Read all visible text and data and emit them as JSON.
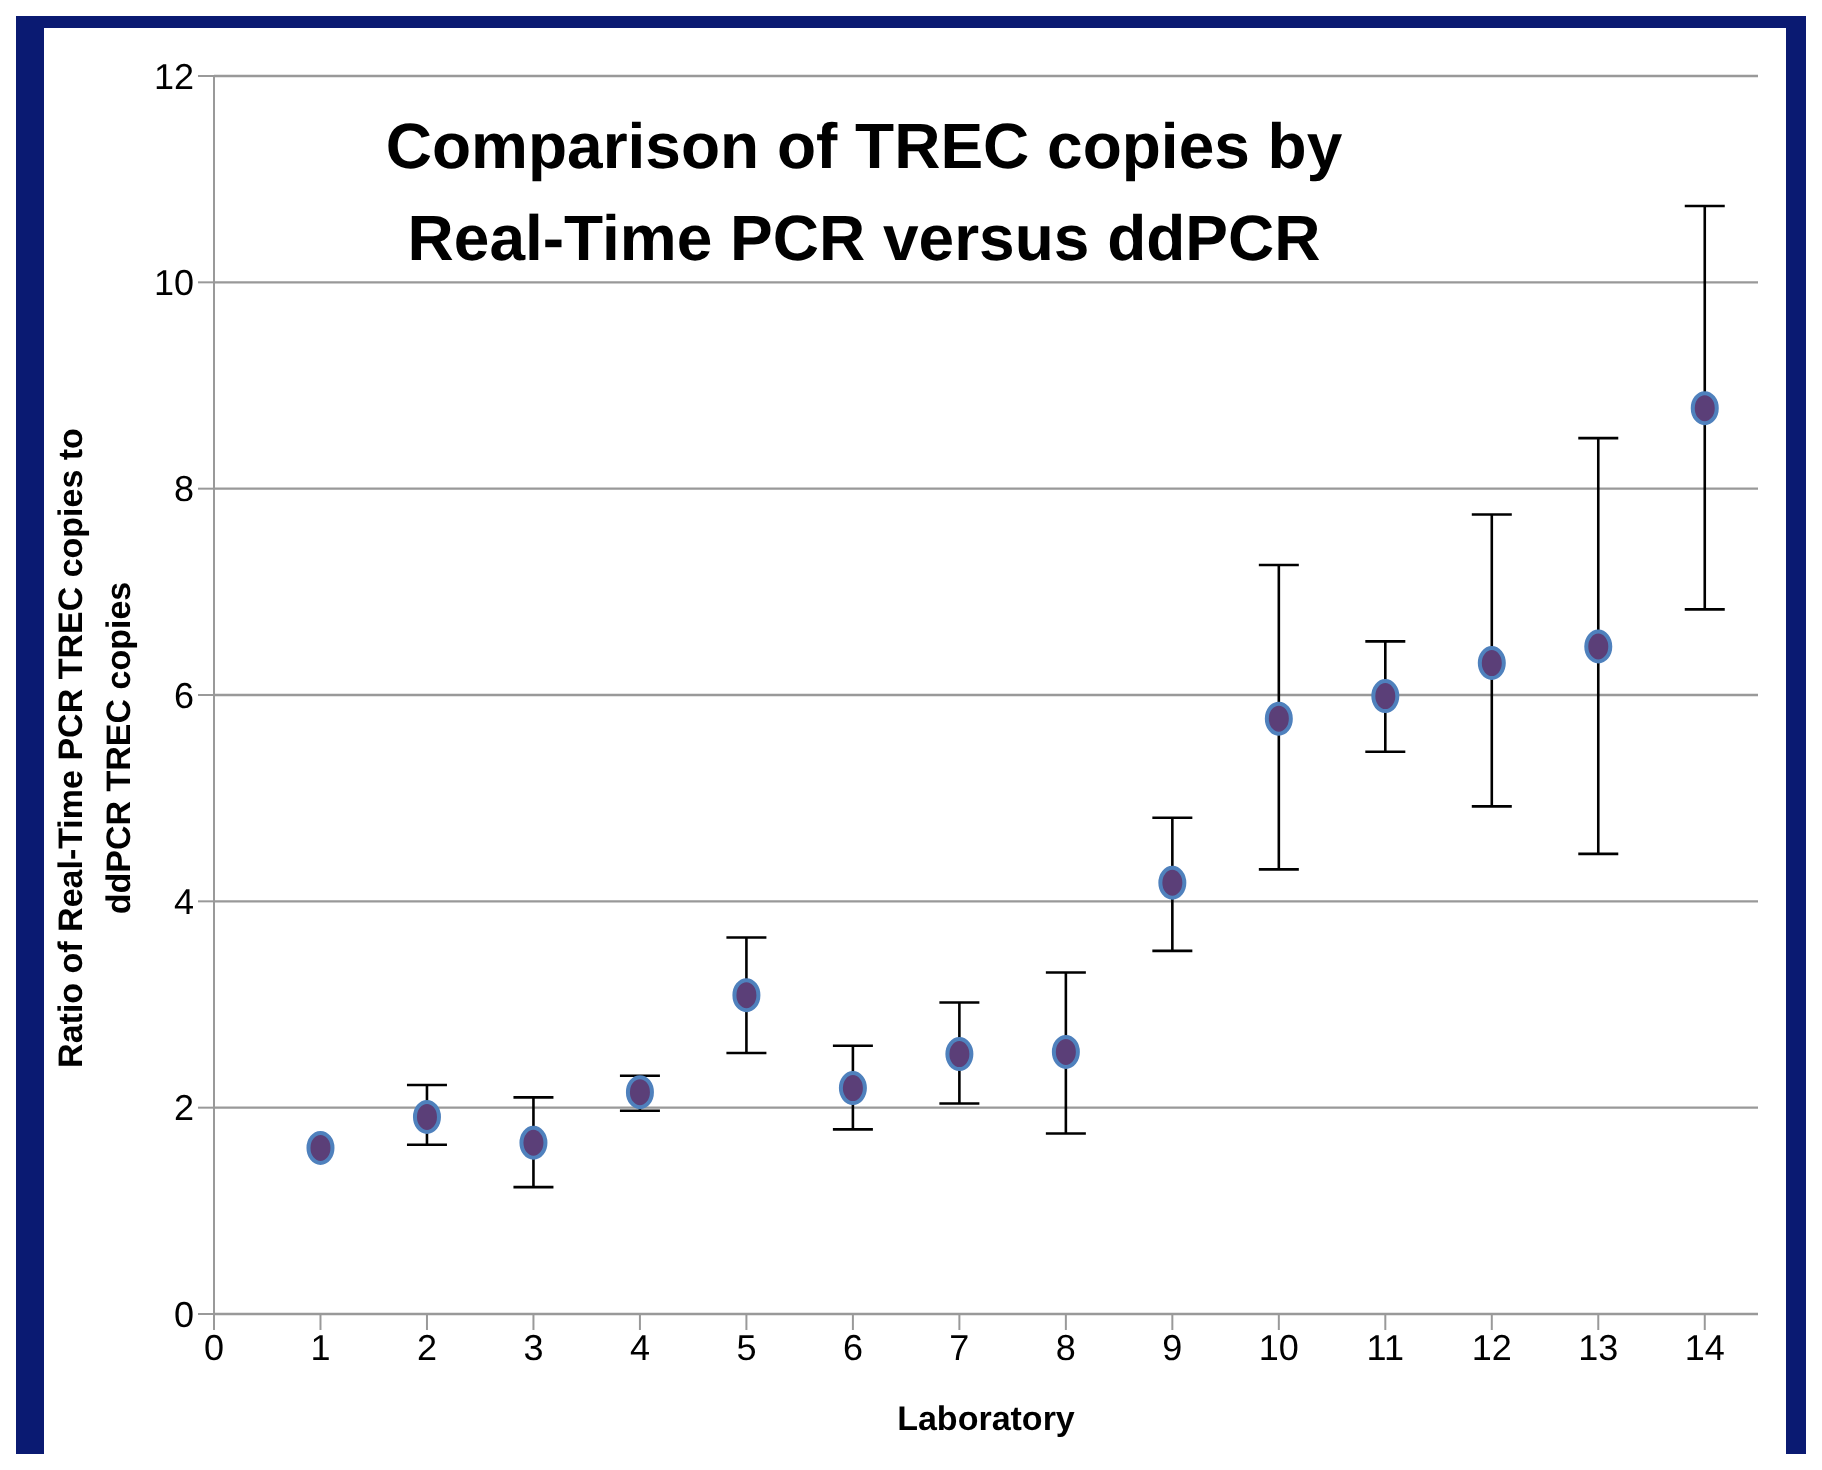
{
  "chart_data": {
    "type": "scatter",
    "title": "Comparison of TREC copies by Real-Time PCR versus ddPCR",
    "xlabel": "Laboratory",
    "ylabel": "Ratio of Real-Time PCR TREC copies to ddPCR TREC copies",
    "x": [
      1,
      2,
      3,
      4,
      5,
      6,
      7,
      8,
      9,
      10,
      11,
      12,
      13,
      14
    ],
    "series": [
      {
        "color": "#5b3f78",
        "values": [
          1.61,
          1.91,
          1.66,
          2.15,
          3.09,
          2.19,
          2.52,
          2.54,
          4.18,
          5.77,
          5.99,
          6.31,
          6.47,
          8.78
        ],
        "errors": [
          null,
          [
            1.64,
            2.22
          ],
          [
            1.23,
            2.1
          ],
          [
            1.97,
            2.31
          ],
          [
            2.53,
            3.65
          ],
          [
            1.79,
            2.6
          ],
          [
            2.04,
            3.02
          ],
          [
            1.75,
            3.31
          ],
          [
            3.52,
            4.81
          ],
          [
            4.31,
            7.26
          ],
          [
            5.45,
            6.52
          ],
          [
            4.92,
            7.75
          ],
          [
            4.46,
            8.49
          ],
          [
            6.83,
            10.74
          ]
        ]
      }
    ],
    "xlim": [
      0,
      14.5
    ],
    "xticks": [
      0,
      1,
      2,
      3,
      4,
      5,
      6,
      7,
      8,
      9,
      10,
      11,
      12,
      13,
      14
    ],
    "ylim": [
      0,
      12
    ],
    "yticks": [
      0,
      2,
      4,
      6,
      8,
      10,
      12
    ],
    "grid": "y",
    "marker": "circle",
    "legend": false
  }
}
